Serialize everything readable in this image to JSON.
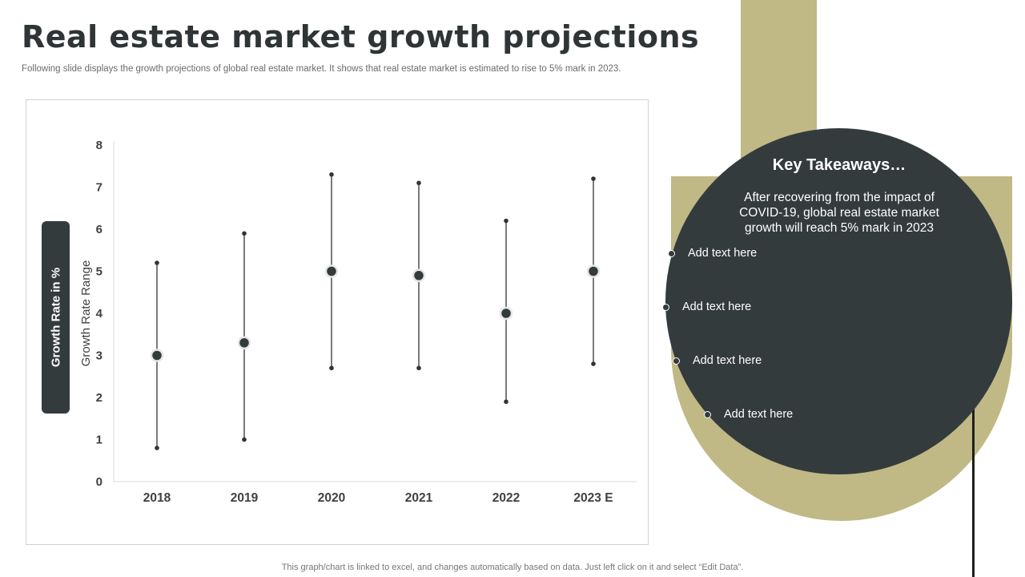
{
  "header": {
    "title": "Real estate market growth projections",
    "subtitle": "Following slide displays the growth projections of global real estate market. It shows that real estate market is estimated to rise to 5% mark in 2023."
  },
  "side_label": "Growth Rate in %",
  "chart_data": {
    "type": "scatter",
    "subtype": "high-low-close",
    "title": "",
    "xlabel": "",
    "ylabel": "Growth Rate Range",
    "categories": [
      "2018",
      "2019",
      "2020",
      "2021",
      "2022",
      "2023 E"
    ],
    "series": [
      {
        "name": "High",
        "values": [
          5.2,
          5.9,
          7.3,
          7.1,
          6.2,
          7.2
        ]
      },
      {
        "name": "Low",
        "values": [
          0.8,
          1.0,
          2.7,
          2.7,
          1.9,
          2.8
        ]
      },
      {
        "name": "Growth Rate",
        "values": [
          3.0,
          3.3,
          5.0,
          4.9,
          4.0,
          5.0
        ]
      }
    ],
    "ylim": [
      0,
      8
    ],
    "yticks": [
      0,
      1,
      2,
      3,
      4,
      5,
      6,
      7,
      8
    ],
    "grid": false,
    "legend": "none"
  },
  "takeaways": {
    "title": "Key Takeaways…",
    "body": "After recovering from the impact of COVID-19, global real estate market growth will reach 5% mark in 2023",
    "items": [
      "Add text here",
      "Add text here",
      "Add text here",
      "Add text here"
    ]
  },
  "colors": {
    "dark": "#343b3d",
    "accent": "#c0b985"
  },
  "footnote": "This graph/chart is linked to excel,  and changes automatically based on data. Just left click on it and select “Edit Data”."
}
